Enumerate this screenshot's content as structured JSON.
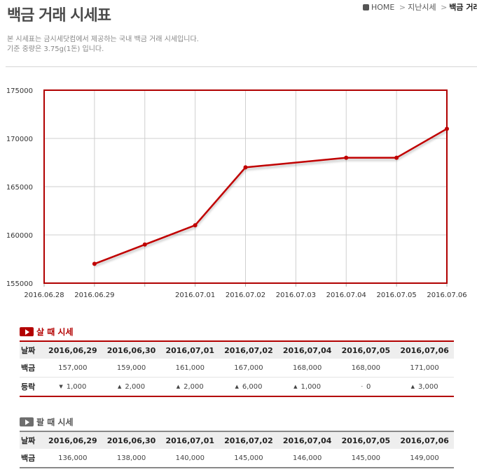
{
  "page": {
    "title": "백금 거래 시세표",
    "breadcrumb": {
      "home": "HOME",
      "sep": ">",
      "mid": "지난시세",
      "current": "백금 거래 시세"
    },
    "description": [
      "본 시세표는 금시세닷컴에서 제공하는 국내 백금 거래 시세입니다.",
      "기준 중량은 3.75g(1돈) 입니다."
    ]
  },
  "colors": {
    "accent": "#b30000",
    "up": "#c00000",
    "down": "#1560c0",
    "sell_section": "#6e6e6e"
  },
  "chart_data": {
    "type": "line",
    "x_ticks": [
      "2016.06.28",
      "2016.06.29",
      "",
      "2016.07.01",
      "2016.07.02",
      "2016.07.03",
      "2016.07.04",
      "2016.07.05",
      "2016.07.06"
    ],
    "points": [
      {
        "x": "2016.06.29",
        "y": 157000
      },
      {
        "x": "2016.06.30",
        "y": 159000
      },
      {
        "x": "2016.07.01",
        "y": 161000
      },
      {
        "x": "2016.07.02",
        "y": 167000
      },
      {
        "x": "2016.07.04",
        "y": 168000
      },
      {
        "x": "2016.07.05",
        "y": 168000
      },
      {
        "x": "2016.07.06",
        "y": 171000
      }
    ],
    "y_ticks": [
      155000,
      160000,
      165000,
      170000,
      175000
    ],
    "ylim": [
      155000,
      175000
    ],
    "grid": true,
    "line_color": "#c00000"
  },
  "buy": {
    "heading": "살 때 시세",
    "headers": [
      "날짜",
      "2016,06,29",
      "2016,06,30",
      "2016,07,01",
      "2016,07,02",
      "2016,07,04",
      "2016,07,05",
      "2016,07,06"
    ],
    "price_label": "백금",
    "prices": [
      "157,000",
      "159,000",
      "161,000",
      "167,000",
      "168,000",
      "168,000",
      "171,000"
    ],
    "change_label": "등락",
    "changes": [
      {
        "dir": "down",
        "glyph": "▼",
        "value": "1,000"
      },
      {
        "dir": "up",
        "glyph": "▲",
        "value": "2,000"
      },
      {
        "dir": "up",
        "glyph": "▲",
        "value": "2,000"
      },
      {
        "dir": "up",
        "glyph": "▲",
        "value": "6,000"
      },
      {
        "dir": "up",
        "glyph": "▲",
        "value": "1,000"
      },
      {
        "dir": "flat",
        "glyph": "-",
        "value": "0"
      },
      {
        "dir": "up",
        "glyph": "▲",
        "value": "3,000"
      }
    ]
  },
  "sell": {
    "heading": "팔 때 시세",
    "headers": [
      "날짜",
      "2016,06,29",
      "2016,06,30",
      "2016,07,01",
      "2016,07,02",
      "2016,07,04",
      "2016,07,05",
      "2016,07,06"
    ],
    "price_label": "백금",
    "prices": [
      "136,000",
      "138,000",
      "140,000",
      "145,000",
      "146,000",
      "145,000",
      "149,000"
    ]
  }
}
